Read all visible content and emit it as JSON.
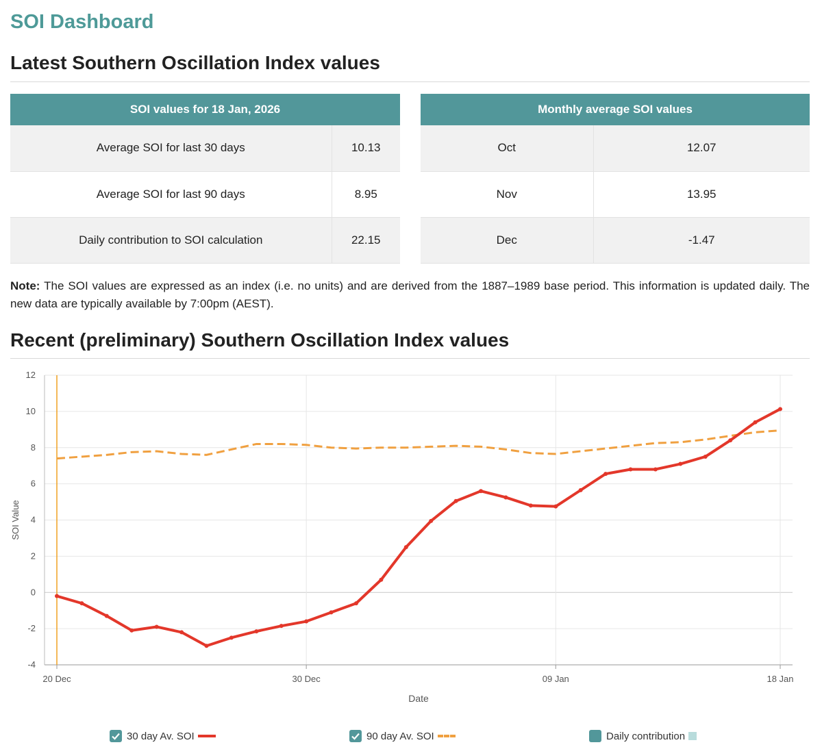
{
  "dashboard_title": "SOI Dashboard",
  "latest": {
    "heading": "Latest Southern Oscillation Index values",
    "current_table": {
      "header": "SOI values for 18 Jan, 2026",
      "rows": [
        {
          "label": "Average SOI for last 30 days",
          "value": "10.13"
        },
        {
          "label": "Average SOI for last 90 days",
          "value": "8.95"
        },
        {
          "label": "Daily contribution to SOI calculation",
          "value": "22.15"
        }
      ]
    },
    "monthly_table": {
      "header": "Monthly average SOI values",
      "rows": [
        {
          "month": "Oct",
          "value": "12.07"
        },
        {
          "month": "Nov",
          "value": "13.95"
        },
        {
          "month": "Dec",
          "value": "-1.47"
        }
      ]
    }
  },
  "note": {
    "label": "Note:",
    "text": "The SOI values are expressed as an index (i.e. no units) and are derived from the 1887–1989 base period. This information is updated daily. The new data are typically available by 7:00pm (AEST)."
  },
  "recent": {
    "heading": "Recent (preliminary) Southern Oscillation Index values"
  },
  "legend": [
    {
      "label": "30 day Av. SOI",
      "checked": true
    },
    {
      "label": "90 day Av. SOI",
      "checked": true
    },
    {
      "label": "Daily contribution",
      "checked": true
    }
  ],
  "colors": {
    "accent": "#52979a",
    "title": "#4e9a98",
    "series_30": "#e3372a",
    "series_90": "#f0a040",
    "daily": "#b8dcdc",
    "marker_line": "#f0a020"
  },
  "chart_data": {
    "type": "line",
    "xlabel": "Date",
    "ylabel": "SOI Value",
    "ylim": [
      -4,
      12
    ],
    "yticks": [
      -4,
      -2,
      0,
      2,
      4,
      6,
      8,
      10,
      12
    ],
    "x": [
      "20 Dec",
      "21 Dec",
      "22 Dec",
      "23 Dec",
      "24 Dec",
      "25 Dec",
      "26 Dec",
      "27 Dec",
      "28 Dec",
      "29 Dec",
      "30 Dec",
      "31 Dec",
      "01 Jan",
      "02 Jan",
      "03 Jan",
      "04 Jan",
      "05 Jan",
      "06 Jan",
      "07 Jan",
      "08 Jan",
      "09 Jan",
      "10 Jan",
      "11 Jan",
      "12 Jan",
      "13 Jan",
      "14 Jan",
      "15 Jan",
      "16 Jan",
      "17 Jan",
      "18 Jan"
    ],
    "xtick_labels": [
      "20 Dec",
      "30 Dec",
      "09 Jan",
      "18 Jan"
    ],
    "grid": true,
    "legend_position": "bottom",
    "series": [
      {
        "name": "30 day Av. SOI",
        "style": "solid",
        "values": [
          -0.2,
          -0.6,
          -1.3,
          -2.1,
          -1.9,
          -2.2,
          -2.95,
          -2.5,
          -2.15,
          -1.85,
          -1.6,
          -1.1,
          -0.6,
          0.7,
          2.5,
          3.95,
          5.05,
          5.6,
          5.25,
          4.8,
          4.75,
          5.65,
          6.55,
          6.8,
          6.8,
          7.1,
          7.5,
          8.4,
          9.4,
          10.13
        ]
      },
      {
        "name": "90 day Av. SOI",
        "style": "dashed",
        "values": [
          7.4,
          7.5,
          7.6,
          7.75,
          7.8,
          7.65,
          7.6,
          7.9,
          8.2,
          8.2,
          8.15,
          8.0,
          7.95,
          8.0,
          8.0,
          8.05,
          8.1,
          8.05,
          7.9,
          7.7,
          7.65,
          7.8,
          7.95,
          8.1,
          8.25,
          8.3,
          8.45,
          8.65,
          8.85,
          8.95
        ]
      }
    ],
    "highlight_x": "20 Dec"
  }
}
